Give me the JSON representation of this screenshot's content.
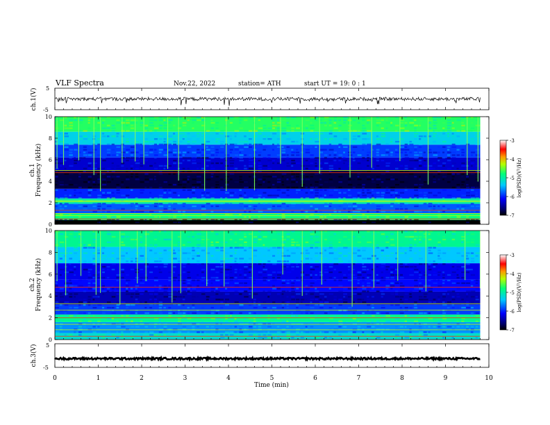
{
  "header": {
    "title": "VLF  Spectra",
    "date": "Nov.22, 2022",
    "station": "station= ATH",
    "start": "start  UT  =    19: 0   : 1"
  },
  "chart_data": {
    "type": "heatmap",
    "xlabel": "Time  (min)",
    "xlim": [
      0,
      10
    ],
    "xticks": [
      "0",
      "1",
      "2",
      "3",
      "4",
      "5",
      "6",
      "7",
      "8",
      "9",
      "10"
    ],
    "data_end_min": 9.8,
    "panels": [
      {
        "name": "ch1-waveform",
        "type": "line",
        "ylabel": "ch.1(V)",
        "ylim": [
          -5,
          5
        ],
        "yticks": [
          "5",
          "-5"
        ],
        "baseline_v": 0,
        "noise_amplitude_v": 0.8,
        "spike_depth_v": 2.8
      },
      {
        "name": "ch1-spectrogram",
        "type": "heatmap",
        "ylabel_line1": "ch.1",
        "ylabel_line2": "Frequency  (kHz)",
        "ylim": [
          0,
          10
        ],
        "yticks": [
          "0",
          "2",
          "4",
          "6",
          "8",
          "10"
        ],
        "colorbar": {
          "label": "log(PSD)(V²/Hz)",
          "range": [
            -7,
            -3
          ],
          "ticks": [
            "-3",
            "-4",
            "-5",
            "-6",
            "-7"
          ]
        },
        "bands_khz": [
          {
            "f0": 0.0,
            "f1": 0.4,
            "log_psd": -7.0
          },
          {
            "f0": 0.4,
            "f1": 1.0,
            "log_psd": -4.8
          },
          {
            "f0": 1.0,
            "f1": 1.9,
            "log_psd": -5.8
          },
          {
            "f0": 1.9,
            "f1": 2.4,
            "log_psd": -5.0
          },
          {
            "f0": 2.4,
            "f1": 3.3,
            "log_psd": -6.0
          },
          {
            "f0": 3.3,
            "f1": 5.0,
            "log_psd": -6.8
          },
          {
            "f0": 5.0,
            "f1": 6.2,
            "log_psd": -6.3
          },
          {
            "f0": 6.2,
            "f1": 7.4,
            "log_psd": -5.9
          },
          {
            "f0": 7.4,
            "f1": 8.6,
            "log_psd": -5.3
          },
          {
            "f0": 8.6,
            "f1": 10.0,
            "log_psd": -4.7
          }
        ],
        "lines_khz": [
          0.5,
          0.8,
          1.0,
          1.3,
          2.1,
          2.2,
          4.8,
          5.0
        ],
        "sferic_minutes": [
          0.05,
          0.2,
          0.55,
          0.9,
          1.05,
          1.55,
          1.85,
          2.05,
          2.6,
          2.85,
          3.45,
          3.95,
          4.6,
          5.2,
          5.7,
          6.1,
          6.8,
          7.3,
          7.95,
          8.6,
          9.5,
          9.75
        ]
      },
      {
        "name": "ch2-spectrogram",
        "type": "heatmap",
        "ylabel_line1": "ch.2",
        "ylabel_line2": "Frequency  (kHz)",
        "ylim": [
          0,
          10
        ],
        "yticks": [
          "0",
          "2",
          "4",
          "6",
          "8",
          "10"
        ],
        "colorbar": {
          "label": "log(PSD)(V²/Hz)",
          "range": [
            -7,
            -3
          ],
          "ticks": [
            "-3",
            "-4",
            "-5",
            "-6",
            "-7"
          ]
        },
        "bands_khz": [
          {
            "f0": 0.0,
            "f1": 0.6,
            "log_psd": -5.2
          },
          {
            "f0": 0.6,
            "f1": 1.6,
            "log_psd": -5.6
          },
          {
            "f0": 1.6,
            "f1": 2.3,
            "log_psd": -4.9
          },
          {
            "f0": 2.3,
            "f1": 3.2,
            "log_psd": -5.9
          },
          {
            "f0": 3.2,
            "f1": 4.4,
            "log_psd": -6.4
          },
          {
            "f0": 4.4,
            "f1": 5.5,
            "log_psd": -6.1
          },
          {
            "f0": 5.5,
            "f1": 7.0,
            "log_psd": -6.2
          },
          {
            "f0": 7.0,
            "f1": 8.5,
            "log_psd": -5.4
          },
          {
            "f0": 8.5,
            "f1": 10.0,
            "log_psd": -4.9
          }
        ],
        "lines_khz": [
          0.3,
          0.9,
          1.4,
          2.0,
          2.7,
          3.3,
          4.8
        ],
        "sferic_minutes": [
          0.05,
          0.25,
          0.6,
          0.95,
          1.05,
          1.5,
          1.9,
          2.1,
          2.7,
          2.9,
          3.5,
          3.9,
          4.55,
          5.25,
          5.7,
          6.15,
          6.85,
          7.35,
          7.9,
          8.55,
          9.45,
          9.8
        ]
      },
      {
        "name": "ch3-waveform",
        "type": "line",
        "ylabel": "ch.3(V)",
        "ylim": [
          -5,
          5
        ],
        "yticks": [
          "5",
          "-5"
        ],
        "baseline_v": -1.3,
        "noise_amplitude_v": 0.4
      }
    ]
  }
}
